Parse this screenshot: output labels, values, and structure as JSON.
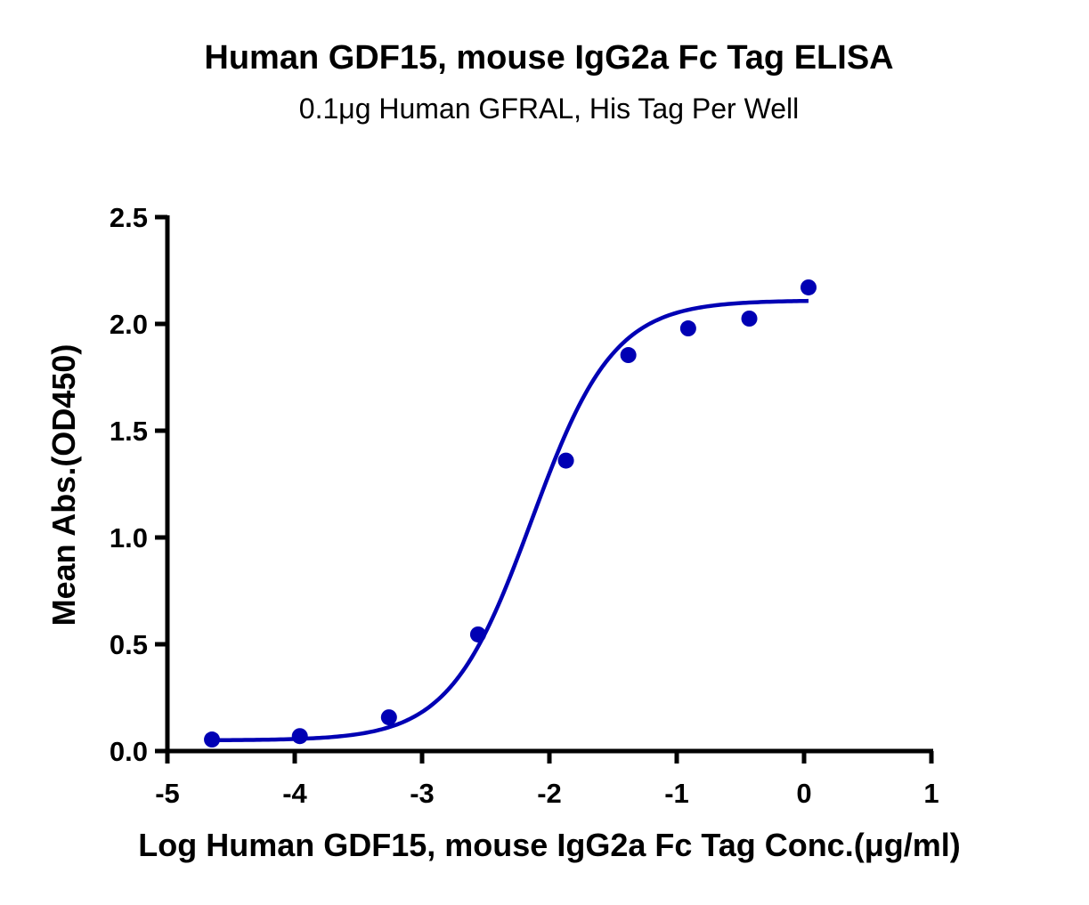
{
  "chart_data": {
    "type": "scatter",
    "title": "Human GDF15, mouse IgG2a Fc Tag ELISA",
    "subtitle": "0.1μg Human GFRAL, His Tag Per Well",
    "xlabel": "Log Human GDF15, mouse IgG2a Fc Tag Conc.(μg/ml)",
    "ylabel": "Mean Abs.(OD450)",
    "xlim": [
      -5,
      1
    ],
    "ylim": [
      0,
      2.5
    ],
    "xticks": [
      "-5",
      "-4",
      "-3",
      "-2",
      "-1",
      "0",
      "1"
    ],
    "yticks": [
      "0.0",
      "0.5",
      "1.0",
      "1.5",
      "2.0",
      "2.5"
    ],
    "grid": false,
    "legend": "none",
    "color": "#0000b4",
    "series": [
      {
        "name": "Human GDF15, mouse IgG2a Fc Tag",
        "x": [
          -4.65,
          -3.96,
          -3.26,
          -2.56,
          -1.87,
          -1.38,
          -0.91,
          -0.43,
          0.035
        ],
        "y": [
          0.054,
          0.07,
          0.158,
          0.546,
          1.36,
          1.854,
          1.979,
          2.025,
          2.171
        ]
      }
    ],
    "fit": {
      "model": "4PL",
      "bottom": 0.05,
      "top": 2.11,
      "logEC50": -2.14,
      "hill": 1.35,
      "x_range": [
        -4.65,
        0.035
      ]
    }
  }
}
